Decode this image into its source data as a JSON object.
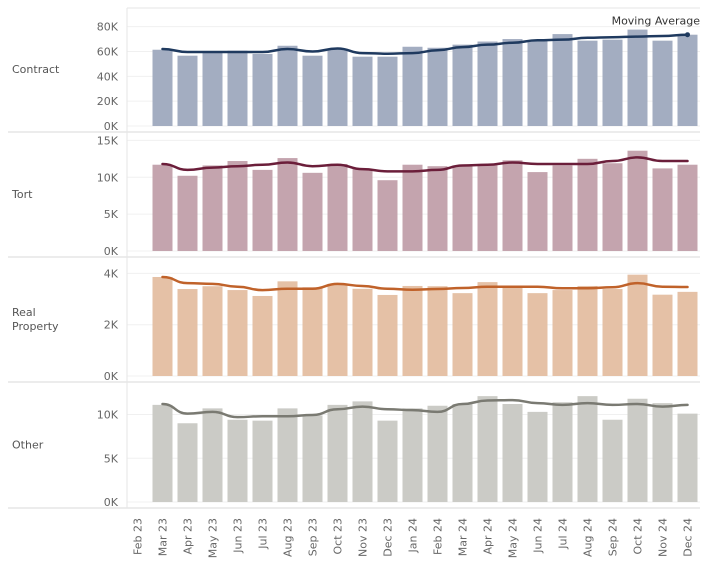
{
  "chart_data": [
    {
      "type": "bar",
      "panel": "Contract",
      "categories": [
        "Feb 23",
        "Mar 23",
        "Apr 23",
        "May 23",
        "Jun 23",
        "Jul 23",
        "Aug 23",
        "Sep 23",
        "Oct 23",
        "Nov 23",
        "Dec 23",
        "Jan 24",
        "Feb 24",
        "Mar 24",
        "Apr 24",
        "May 24",
        "Jun 24",
        "Jul 24",
        "Aug 24",
        "Sep 24",
        "Oct 24",
        "Nov 24",
        "Dec 24"
      ],
      "values": [
        null,
        61.4,
        56.6,
        59,
        60.6,
        58,
        64.6,
        56.6,
        62,
        55.8,
        55.8,
        63.8,
        63,
        65.5,
        68,
        70,
        68.7,
        74,
        68.7,
        69.5,
        77.6,
        68.7,
        73.5
      ],
      "moving_average": [
        null,
        62,
        59.6,
        59.6,
        59.6,
        59.6,
        62,
        60,
        62.4,
        58.7,
        58.2,
        58.7,
        61,
        63.5,
        65.5,
        67,
        69,
        69.5,
        71,
        71.5,
        72,
        72.5,
        73.5
      ],
      "yticks": [
        0,
        20,
        40,
        60,
        80
      ],
      "tick_labels": [
        "0K",
        "20K",
        "40K",
        "60K",
        "80K"
      ],
      "ylim": [
        0,
        95
      ],
      "unit": "thousands",
      "bar_color": "#a3adc1",
      "line_color": "#1f3a5f",
      "annotation": "Moving Average"
    },
    {
      "type": "bar",
      "panel": "Tort",
      "values": [
        null,
        11.7,
        10.2,
        11.6,
        12.2,
        11.0,
        12.6,
        10.6,
        11.8,
        11.1,
        9.6,
        11.7,
        11.5,
        11.6,
        11.7,
        12.3,
        10.7,
        11.6,
        12.5,
        11.9,
        13.6,
        11.2,
        11.7
      ],
      "moving_average": [
        null,
        11.8,
        11.0,
        11.3,
        11.5,
        11.7,
        12.0,
        11.5,
        11.7,
        11.1,
        10.8,
        10.8,
        11.0,
        11.6,
        11.7,
        12.0,
        11.8,
        11.8,
        11.8,
        12.2,
        12.7,
        12.2,
        12.2
      ],
      "yticks": [
        0,
        5,
        10,
        15
      ],
      "tick_labels": [
        "0K",
        "5K",
        "10K",
        "15K"
      ],
      "ylim": [
        0,
        16
      ],
      "unit": "thousands",
      "bar_color": "#c4a4ae",
      "line_color": "#6b1e3a"
    },
    {
      "type": "bar",
      "panel": "Real Property",
      "values": [
        null,
        3.86,
        3.39,
        3.5,
        3.35,
        3.12,
        3.69,
        3.46,
        3.59,
        3.4,
        3.16,
        3.51,
        3.5,
        3.23,
        3.66,
        3.46,
        3.23,
        3.35,
        3.51,
        3.39,
        3.95,
        3.17,
        3.28
      ],
      "moving_average": [
        null,
        3.86,
        3.62,
        3.59,
        3.48,
        3.35,
        3.4,
        3.4,
        3.59,
        3.51,
        3.4,
        3.36,
        3.39,
        3.43,
        3.48,
        3.48,
        3.48,
        3.42,
        3.42,
        3.46,
        3.62,
        3.48,
        3.47
      ],
      "yticks": [
        0,
        2,
        4
      ],
      "tick_labels": [
        "0K",
        "2K",
        "4K"
      ],
      "ylim": [
        0,
        4.6
      ],
      "unit": "thousands",
      "bar_color": "#e5c1a6",
      "line_color": "#c0622a"
    },
    {
      "type": "bar",
      "panel": "Other",
      "values": [
        null,
        11.1,
        9.0,
        10.7,
        9.4,
        9.3,
        10.7,
        9.9,
        11.1,
        11.5,
        9.3,
        10.7,
        11.0,
        11.2,
        12.1,
        11.2,
        10.3,
        11.4,
        12.1,
        9.4,
        11.8,
        11.3,
        10.1
      ],
      "moving_average": [
        null,
        11.2,
        10.1,
        10.3,
        9.7,
        9.8,
        9.8,
        9.95,
        10.6,
        10.9,
        10.6,
        10.5,
        10.3,
        11.2,
        11.6,
        11.65,
        11.3,
        11.1,
        11.3,
        11.1,
        11.2,
        10.9,
        11.1
      ],
      "yticks": [
        0,
        5,
        10
      ],
      "tick_labels": [
        "0K",
        "5K",
        "10K"
      ],
      "ylim": [
        0,
        13.6
      ],
      "unit": "thousands",
      "bar_color": "#cbcbc6",
      "line_color": "#7a7a72"
    }
  ]
}
